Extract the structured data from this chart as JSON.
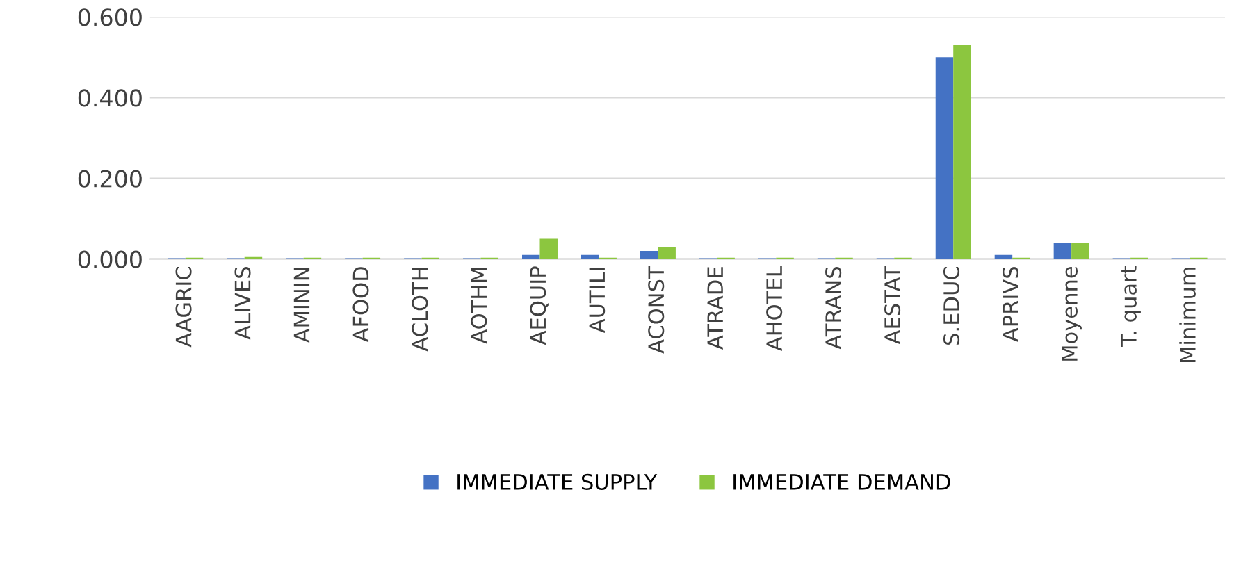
{
  "chart_data": {
    "type": "bar",
    "categories": [
      "AAGRIC",
      "ALIVES",
      "AMININ",
      "AFOOD",
      "ACLOTH",
      "AOTHM",
      "AEQUIP",
      "AUTILI",
      "ACONST",
      "ATRADE",
      "AHOTEL",
      "ATRANS",
      "AESTAT",
      "S.EDUC",
      "APRIVS",
      "Moyenne",
      "T. quart",
      "Minimum"
    ],
    "series": [
      {
        "name": "IMMEDIATE SUPPLY",
        "color": "#4472c4",
        "values": [
          0.002,
          0.002,
          0.002,
          0.002,
          0.002,
          0.002,
          0.01,
          0.01,
          0.02,
          0.002,
          0.002,
          0.002,
          0.002,
          0.5,
          0.01,
          0.04,
          0.002,
          0.002
        ]
      },
      {
        "name": "IMMEDIATE DEMAND",
        "color": "#8cc63f",
        "values": [
          0.003,
          0.005,
          0.003,
          0.003,
          0.003,
          0.003,
          0.05,
          0.003,
          0.03,
          0.003,
          0.003,
          0.003,
          0.003,
          0.53,
          0.003,
          0.04,
          0.003,
          0.003
        ]
      }
    ],
    "ylim": [
      0,
      0.6
    ],
    "yticks": [
      {
        "value": 0,
        "label": "0.000"
      },
      {
        "value": 0.2,
        "label": "0.200"
      },
      {
        "value": 0.4,
        "label": "0.400"
      },
      {
        "value": 0.6,
        "label": "0.600"
      }
    ],
    "grid": "y",
    "legend": "bottom"
  }
}
